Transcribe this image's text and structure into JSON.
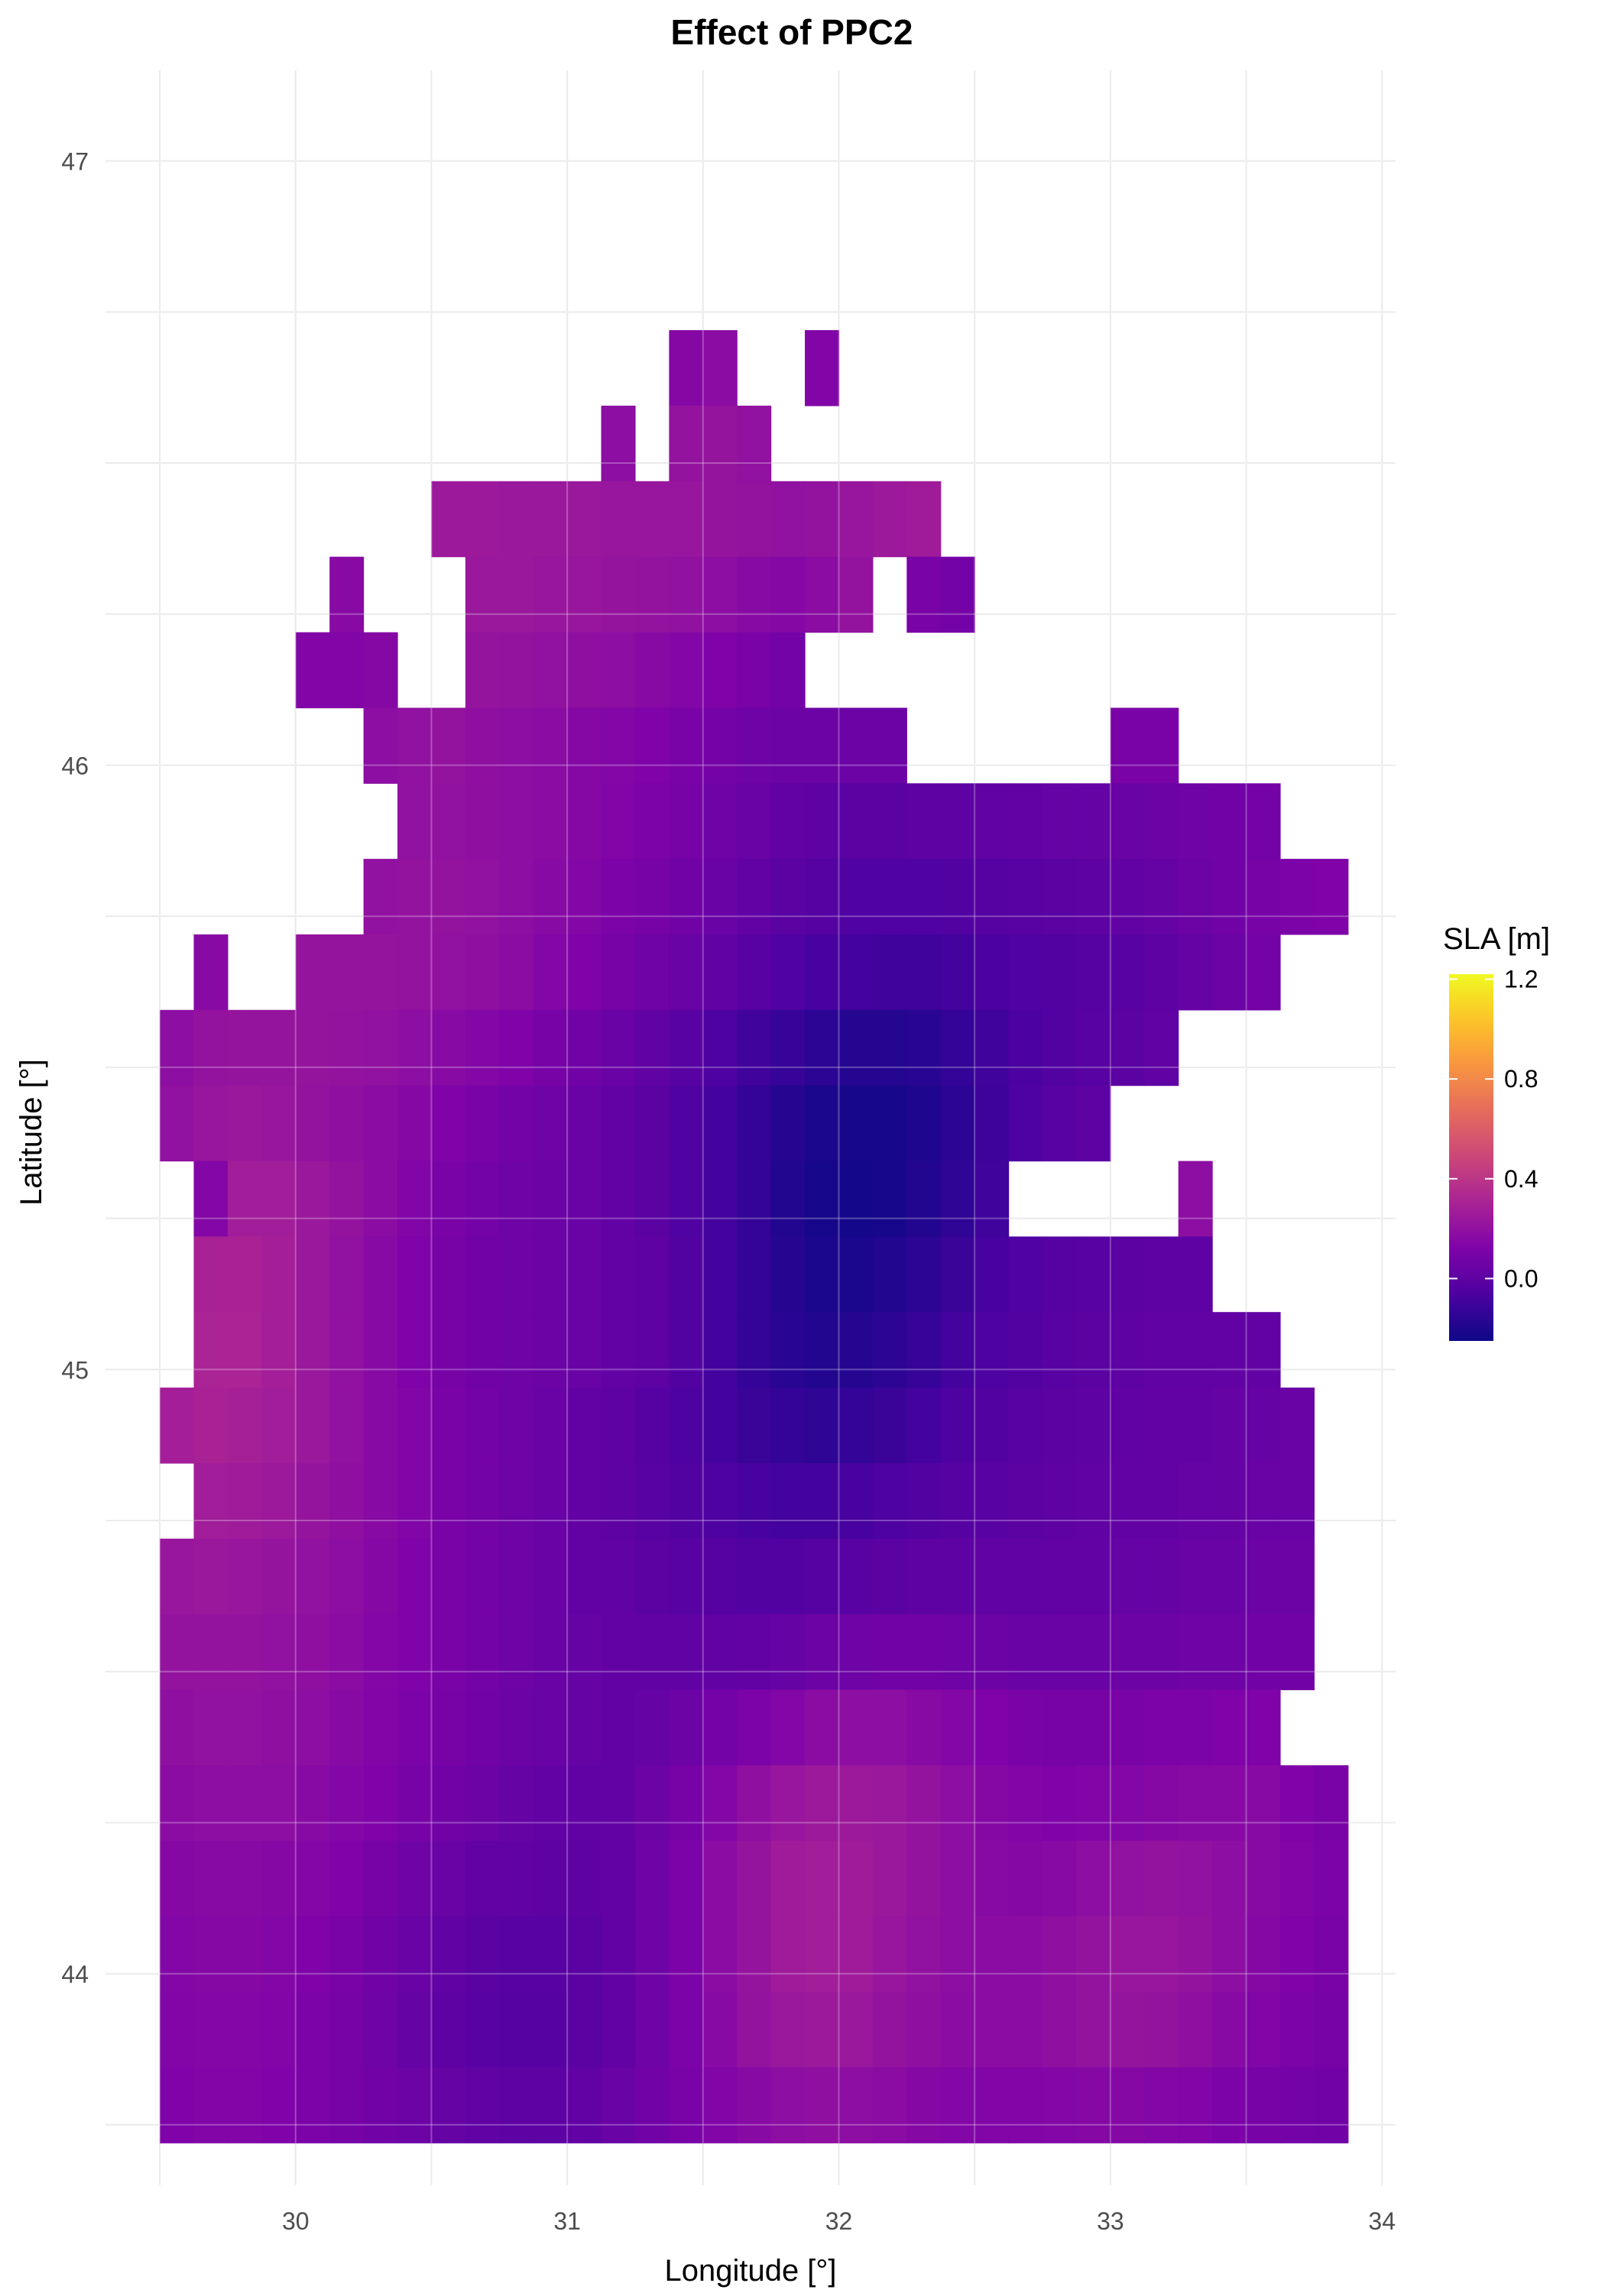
{
  "chart_data": {
    "type": "heatmap",
    "title": "Effect of PPC2",
    "xlabel": "Longitude [°]",
    "ylabel": "Latitude [°]",
    "xlim": [
      29.3,
      34.05
    ],
    "ylim": [
      43.65,
      47.15
    ],
    "x_ticks": [
      30,
      31,
      32,
      33,
      34
    ],
    "x_tick_labels": [
      "30",
      "31",
      "32",
      "33",
      "34"
    ],
    "y_ticks": [
      44,
      45,
      46,
      47
    ],
    "y_tick_labels": [
      "44",
      "45",
      "46",
      "47"
    ],
    "grid": true,
    "legend": {
      "title": "SLA [m]",
      "position": "right",
      "colormap": "plasma",
      "min": -0.25,
      "max": 1.22,
      "ticks": [
        0.0,
        0.4,
        0.8,
        1.2
      ],
      "tick_labels": [
        "0.0",
        "0.4",
        "0.8",
        "1.2"
      ]
    },
    "grid_cells": {
      "x0": 29.5,
      "dx": 0.125,
      "y_top": 46.72,
      "dy": 0.125,
      "no_data": -9,
      "rows": [
        [
          -9,
          -9,
          -9,
          -9,
          -9,
          -9,
          -9,
          -9,
          -9,
          -9,
          -9,
          -9,
          -9,
          -9,
          -9,
          0.15,
          0.17,
          -9,
          -9,
          0.13,
          -9,
          -9,
          -9,
          -9,
          -9,
          -9,
          -9,
          -9,
          -9,
          -9,
          -9,
          -9,
          -9,
          -9,
          -9
        ],
        [
          -9,
          -9,
          -9,
          -9,
          -9,
          -9,
          -9,
          -9,
          -9,
          -9,
          -9,
          -9,
          -9,
          0.18,
          -9,
          0.21,
          0.22,
          0.2,
          -9,
          -9,
          -9,
          -9,
          -9,
          -9,
          -9,
          -9,
          -9,
          -9,
          -9,
          -9,
          -9,
          -9,
          -9,
          -9,
          -9
        ],
        [
          -9,
          -9,
          -9,
          -9,
          -9,
          -9,
          -9,
          -9,
          0.25,
          0.25,
          0.24,
          0.24,
          0.24,
          0.23,
          0.23,
          0.23,
          0.22,
          0.21,
          0.2,
          0.21,
          0.23,
          0.25,
          0.26,
          -9,
          -9,
          -9,
          -9,
          -9,
          -9,
          -9,
          -9,
          -9,
          -9,
          -9,
          -9
        ],
        [
          -9,
          -9,
          -9,
          -9,
          -9,
          0.16,
          -9,
          -9,
          -9,
          0.24,
          0.24,
          0.23,
          0.23,
          0.22,
          0.21,
          0.2,
          0.18,
          0.16,
          0.15,
          0.17,
          0.21,
          -9,
          0.1,
          0.08,
          -9,
          -9,
          -9,
          -9,
          -9,
          -9,
          -9,
          -9,
          -9,
          -9,
          -9
        ],
        [
          -9,
          -9,
          -9,
          -9,
          0.13,
          0.13,
          0.15,
          -9,
          -9,
          0.22,
          0.21,
          0.2,
          0.19,
          0.18,
          0.16,
          0.14,
          0.12,
          0.1,
          0.08,
          -9,
          -9,
          -9,
          -9,
          -9,
          -9,
          -9,
          -9,
          -9,
          -9,
          -9,
          -9,
          -9,
          -9,
          -9,
          -9
        ],
        [
          -9,
          -9,
          -9,
          -9,
          -9,
          -9,
          0.18,
          0.2,
          0.21,
          0.19,
          0.18,
          0.17,
          0.15,
          0.14,
          0.12,
          0.1,
          0.08,
          0.06,
          0.05,
          0.05,
          0.05,
          0.05,
          -9,
          -9,
          -9,
          -9,
          -9,
          -9,
          0.1,
          0.1,
          -9,
          -9,
          -9,
          -9,
          -9
        ],
        [
          -9,
          -9,
          -9,
          -9,
          -9,
          -9,
          -9,
          0.2,
          0.2,
          0.19,
          0.18,
          0.17,
          0.15,
          0.13,
          0.11,
          0.09,
          0.06,
          0.04,
          0.02,
          0.0,
          -0.01,
          -0.01,
          0.0,
          0.0,
          0.01,
          0.02,
          0.03,
          0.03,
          0.04,
          0.05,
          0.06,
          0.07,
          0.08,
          -9,
          -9
        ],
        [
          -9,
          -9,
          -9,
          -9,
          -9,
          -9,
          0.2,
          0.21,
          0.21,
          0.2,
          0.18,
          0.16,
          0.14,
          0.11,
          0.09,
          0.07,
          0.04,
          0.02,
          -0.01,
          -0.03,
          -0.05,
          -0.05,
          -0.05,
          -0.04,
          -0.03,
          -0.02,
          -0.01,
          0.0,
          0.02,
          0.03,
          0.05,
          0.07,
          0.09,
          0.11,
          0.12
        ],
        [
          -9,
          0.16,
          -9,
          -9,
          0.22,
          0.22,
          0.22,
          0.21,
          0.2,
          0.19,
          0.17,
          0.14,
          0.12,
          0.09,
          0.06,
          0.04,
          0.01,
          -0.02,
          -0.05,
          -0.08,
          -0.09,
          -0.1,
          -0.1,
          -0.09,
          -0.07,
          -0.05,
          -0.04,
          -0.03,
          -0.02,
          0.0,
          0.03,
          0.05,
          0.08,
          -9,
          -9
        ],
        [
          0.18,
          0.21,
          0.22,
          0.22,
          0.22,
          0.21,
          0.2,
          0.18,
          0.16,
          0.14,
          0.12,
          0.09,
          0.07,
          0.04,
          0.01,
          -0.02,
          -0.06,
          -0.1,
          -0.13,
          -0.16,
          -0.18,
          -0.18,
          -0.17,
          -0.14,
          -0.1,
          -0.07,
          -0.04,
          -0.02,
          -0.01,
          0.01,
          -9,
          -9,
          -9,
          -9,
          -9
        ],
        [
          0.2,
          0.23,
          0.24,
          0.23,
          0.21,
          0.19,
          0.17,
          0.15,
          0.12,
          0.1,
          0.08,
          0.06,
          0.04,
          0.02,
          -0.01,
          -0.05,
          -0.09,
          -0.14,
          -0.18,
          -0.21,
          -0.22,
          -0.22,
          -0.2,
          -0.16,
          -0.11,
          -0.06,
          -0.02,
          0.0,
          -9,
          -9,
          -9,
          -9,
          -9,
          -9,
          -9
        ],
        [
          -9,
          0.14,
          0.27,
          0.27,
          0.24,
          0.21,
          0.17,
          0.13,
          0.1,
          0.08,
          0.06,
          0.05,
          0.04,
          0.02,
          -0.01,
          -0.05,
          -0.09,
          -0.14,
          -0.19,
          -0.22,
          -0.23,
          -0.22,
          -0.19,
          -0.15,
          -0.1,
          -9,
          -9,
          -9,
          -9,
          -9,
          0.18,
          -9,
          -9,
          -9,
          -9
        ],
        [
          -9,
          0.3,
          0.3,
          0.28,
          0.24,
          0.2,
          0.16,
          0.12,
          0.09,
          0.07,
          0.06,
          0.05,
          0.04,
          0.02,
          0.0,
          -0.04,
          -0.09,
          -0.14,
          -0.18,
          -0.21,
          -0.21,
          -0.19,
          -0.16,
          -0.12,
          -0.08,
          -0.05,
          -0.03,
          -0.02,
          -0.01,
          0.0,
          0.0,
          -9,
          -9,
          -9,
          -9
        ],
        [
          -9,
          0.31,
          0.31,
          0.28,
          0.24,
          0.2,
          0.16,
          0.12,
          0.09,
          0.07,
          0.06,
          0.05,
          0.04,
          0.02,
          0.0,
          -0.04,
          -0.09,
          -0.14,
          -0.17,
          -0.19,
          -0.18,
          -0.16,
          -0.13,
          -0.09,
          -0.06,
          -0.04,
          -0.02,
          -0.01,
          0.0,
          0.01,
          0.01,
          0.02,
          0.02,
          -9,
          -9
        ],
        [
          0.28,
          0.3,
          0.29,
          0.27,
          0.24,
          0.2,
          0.16,
          0.13,
          0.1,
          0.08,
          0.06,
          0.04,
          0.02,
          0.0,
          -0.03,
          -0.06,
          -0.09,
          -0.12,
          -0.14,
          -0.15,
          -0.14,
          -0.12,
          -0.09,
          -0.06,
          -0.04,
          -0.02,
          -0.01,
          0.0,
          0.01,
          0.02,
          0.02,
          0.03,
          0.03,
          0.04,
          -9
        ],
        [
          -9,
          0.27,
          0.26,
          0.25,
          0.22,
          0.19,
          0.16,
          0.13,
          0.1,
          0.08,
          0.06,
          0.04,
          0.02,
          0.0,
          -0.02,
          -0.04,
          -0.06,
          -0.08,
          -0.09,
          -0.09,
          -0.08,
          -0.06,
          -0.04,
          -0.03,
          -0.02,
          -0.01,
          0.0,
          0.01,
          0.02,
          0.02,
          0.03,
          0.03,
          0.04,
          0.04,
          -9
        ],
        [
          0.23,
          0.24,
          0.23,
          0.22,
          0.2,
          0.18,
          0.15,
          0.12,
          0.1,
          0.08,
          0.06,
          0.04,
          0.02,
          0.01,
          -0.01,
          -0.02,
          -0.03,
          -0.04,
          -0.04,
          -0.03,
          -0.02,
          -0.01,
          0.0,
          0.0,
          0.01,
          0.01,
          0.02,
          0.02,
          0.03,
          0.03,
          0.04,
          0.04,
          0.05,
          0.05,
          -9
        ],
        [
          0.21,
          0.21,
          0.21,
          0.2,
          0.19,
          0.17,
          0.14,
          0.12,
          0.1,
          0.08,
          0.06,
          0.04,
          0.03,
          0.02,
          0.01,
          0.01,
          0.01,
          0.02,
          0.03,
          0.05,
          0.06,
          0.07,
          0.07,
          0.06,
          0.05,
          0.04,
          0.04,
          0.04,
          0.05,
          0.05,
          0.06,
          0.06,
          0.07,
          0.07,
          -9
        ],
        [
          0.19,
          0.2,
          0.2,
          0.19,
          0.18,
          0.16,
          0.13,
          0.11,
          0.09,
          0.07,
          0.05,
          0.04,
          0.03,
          0.02,
          0.03,
          0.05,
          0.08,
          0.11,
          0.14,
          0.17,
          0.18,
          0.18,
          0.16,
          0.14,
          0.12,
          0.1,
          0.09,
          0.09,
          0.1,
          0.11,
          0.11,
          0.12,
          0.12,
          -9,
          -9
        ],
        [
          0.17,
          0.18,
          0.18,
          0.18,
          0.16,
          0.14,
          0.12,
          0.09,
          0.07,
          0.05,
          0.03,
          0.02,
          0.01,
          0.02,
          0.05,
          0.09,
          0.14,
          0.19,
          0.23,
          0.25,
          0.25,
          0.24,
          0.21,
          0.18,
          0.15,
          0.13,
          0.12,
          0.13,
          0.14,
          0.15,
          0.16,
          0.16,
          0.16,
          0.12,
          0.1
        ],
        [
          0.15,
          0.16,
          0.16,
          0.15,
          0.14,
          0.12,
          0.09,
          0.06,
          0.04,
          0.02,
          0.01,
          0.0,
          0.0,
          0.02,
          0.06,
          0.11,
          0.17,
          0.22,
          0.26,
          0.27,
          0.26,
          0.24,
          0.21,
          0.18,
          0.16,
          0.15,
          0.16,
          0.18,
          0.2,
          0.21,
          0.2,
          0.18,
          0.16,
          0.13,
          0.11
        ],
        [
          0.14,
          0.15,
          0.15,
          0.14,
          0.12,
          0.1,
          0.07,
          0.04,
          0.01,
          -0.01,
          -0.02,
          -0.02,
          -0.01,
          0.02,
          0.06,
          0.11,
          0.17,
          0.22,
          0.26,
          0.27,
          0.26,
          0.23,
          0.2,
          0.18,
          0.17,
          0.17,
          0.19,
          0.21,
          0.23,
          0.23,
          0.21,
          0.18,
          0.15,
          0.12,
          0.1
        ],
        [
          0.13,
          0.14,
          0.14,
          0.13,
          0.11,
          0.09,
          0.06,
          0.03,
          0.0,
          -0.02,
          -0.03,
          -0.03,
          -0.01,
          0.02,
          0.06,
          0.11,
          0.16,
          0.21,
          0.24,
          0.25,
          0.24,
          0.21,
          0.19,
          0.17,
          0.17,
          0.17,
          0.19,
          0.21,
          0.22,
          0.21,
          0.19,
          0.16,
          0.13,
          0.11,
          0.09
        ],
        [
          0.12,
          0.13,
          0.13,
          0.12,
          0.11,
          0.09,
          0.07,
          0.05,
          0.03,
          0.01,
          0.0,
          0.0,
          0.02,
          0.04,
          0.07,
          0.1,
          0.13,
          0.16,
          0.18,
          0.19,
          0.18,
          0.17,
          0.15,
          0.14,
          0.13,
          0.13,
          0.14,
          0.15,
          0.15,
          0.14,
          0.13,
          0.11,
          0.09,
          0.08,
          0.07
        ]
      ]
    }
  }
}
